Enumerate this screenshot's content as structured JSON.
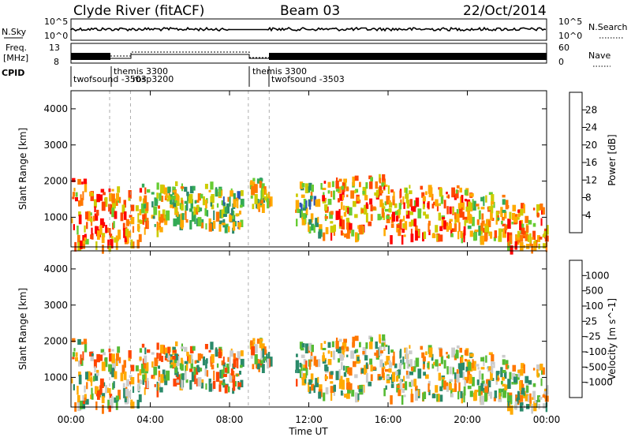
{
  "header": {
    "station": "Clyde River (fitACF)",
    "beam": "Beam 03",
    "date": "22/Oct/2014"
  },
  "side_labels": {
    "nsky": "N.Sky",
    "freq_line1": "Freq.",
    "freq_line2": "[MHz]",
    "cpid": "CPID",
    "nsearch": "N.Search",
    "nave": "Nave"
  },
  "top_axes": {
    "nsky_ticks": [
      "10^5",
      "10^0"
    ],
    "nsearch_ticks": [
      "10^5",
      "10^0"
    ],
    "freq_ticks": [
      "13",
      "8"
    ],
    "nave_ticks": [
      "60",
      "0"
    ]
  },
  "cpid_labels": [
    "twofsound -3503",
    "themis 3300",
    "rbsp3200",
    "themis 3300",
    "twofsound -3503"
  ],
  "x_ticks": [
    "00:00",
    "04:00",
    "08:00",
    "12:00",
    "16:00",
    "20:00",
    "00:00"
  ],
  "x_label": "Time UT",
  "colors": {
    "power_scale": [
      "#0000ff",
      "#2a55b5",
      "#2a8a6a",
      "#33aa55",
      "#66cc33",
      "#cccc00",
      "#ffaa00",
      "#ff7700",
      "#ff4400",
      "#ff0000"
    ],
    "velocity_scale": [
      "#ff0000",
      "#ff4400",
      "#ff7700",
      "#ffaa00",
      "#cccccc",
      "#55bb33",
      "#2a8a6a",
      "#2a55b5",
      "#1b2aa5"
    ]
  },
  "chart_data": [
    {
      "type": "heatmap",
      "title": "Power",
      "ylabel": "Slant Range [km]",
      "xlabel": "Time UT",
      "ylim": [
        180,
        4500
      ],
      "y_ticks": [
        1000,
        2000,
        3000,
        4000
      ],
      "colorbar_label": "Power [dB]",
      "colorbar_ticks": [
        "28",
        "24",
        "20",
        "16",
        "12",
        "8",
        "4"
      ],
      "colorbar_range": [
        0,
        32
      ]
    },
    {
      "type": "heatmap",
      "title": "Velocity",
      "ylabel": "Slant Range [km]",
      "xlabel": "Time UT",
      "ylim": [
        180,
        4500
      ],
      "y_ticks": [
        1000,
        2000,
        3000,
        4000
      ],
      "colorbar_label": "Velocity [m s^-1]",
      "colorbar_ticks": [
        "1000",
        "500",
        "100",
        "25",
        "-25",
        "-100",
        "-500",
        "-1000"
      ]
    }
  ]
}
